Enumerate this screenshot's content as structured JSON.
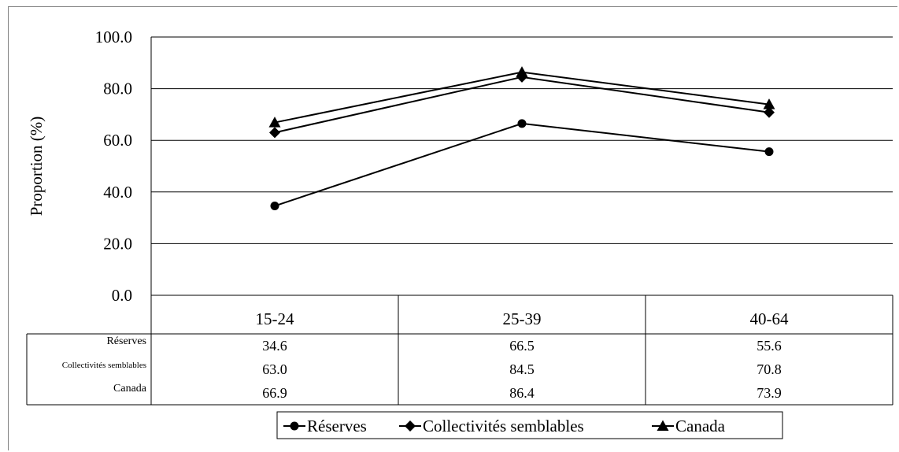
{
  "chart_data": {
    "type": "line",
    "categories": [
      "15-24",
      "25-39",
      "40-64"
    ],
    "ylabel": "Proportion (%)",
    "ylim": [
      0,
      100
    ],
    "yticks": [
      "0.0",
      "20.0",
      "40.0",
      "60.0",
      "80.0",
      "100.0"
    ],
    "grid": true,
    "legend_position": "bottom",
    "series": [
      {
        "name": "Réserves",
        "marker": "circle",
        "values": [
          34.6,
          66.5,
          55.6
        ],
        "labels": [
          "34.6",
          "66.5",
          "55.6"
        ]
      },
      {
        "name": "Collectivités semblables",
        "marker": "diamond",
        "values": [
          63.0,
          84.5,
          70.8
        ],
        "labels": [
          "63.0",
          "84.5",
          "70.8"
        ]
      },
      {
        "name": "Canada",
        "marker": "triangle",
        "values": [
          66.9,
          86.4,
          73.9
        ],
        "labels": [
          "66.9",
          "86.4",
          "73.9"
        ]
      }
    ]
  }
}
